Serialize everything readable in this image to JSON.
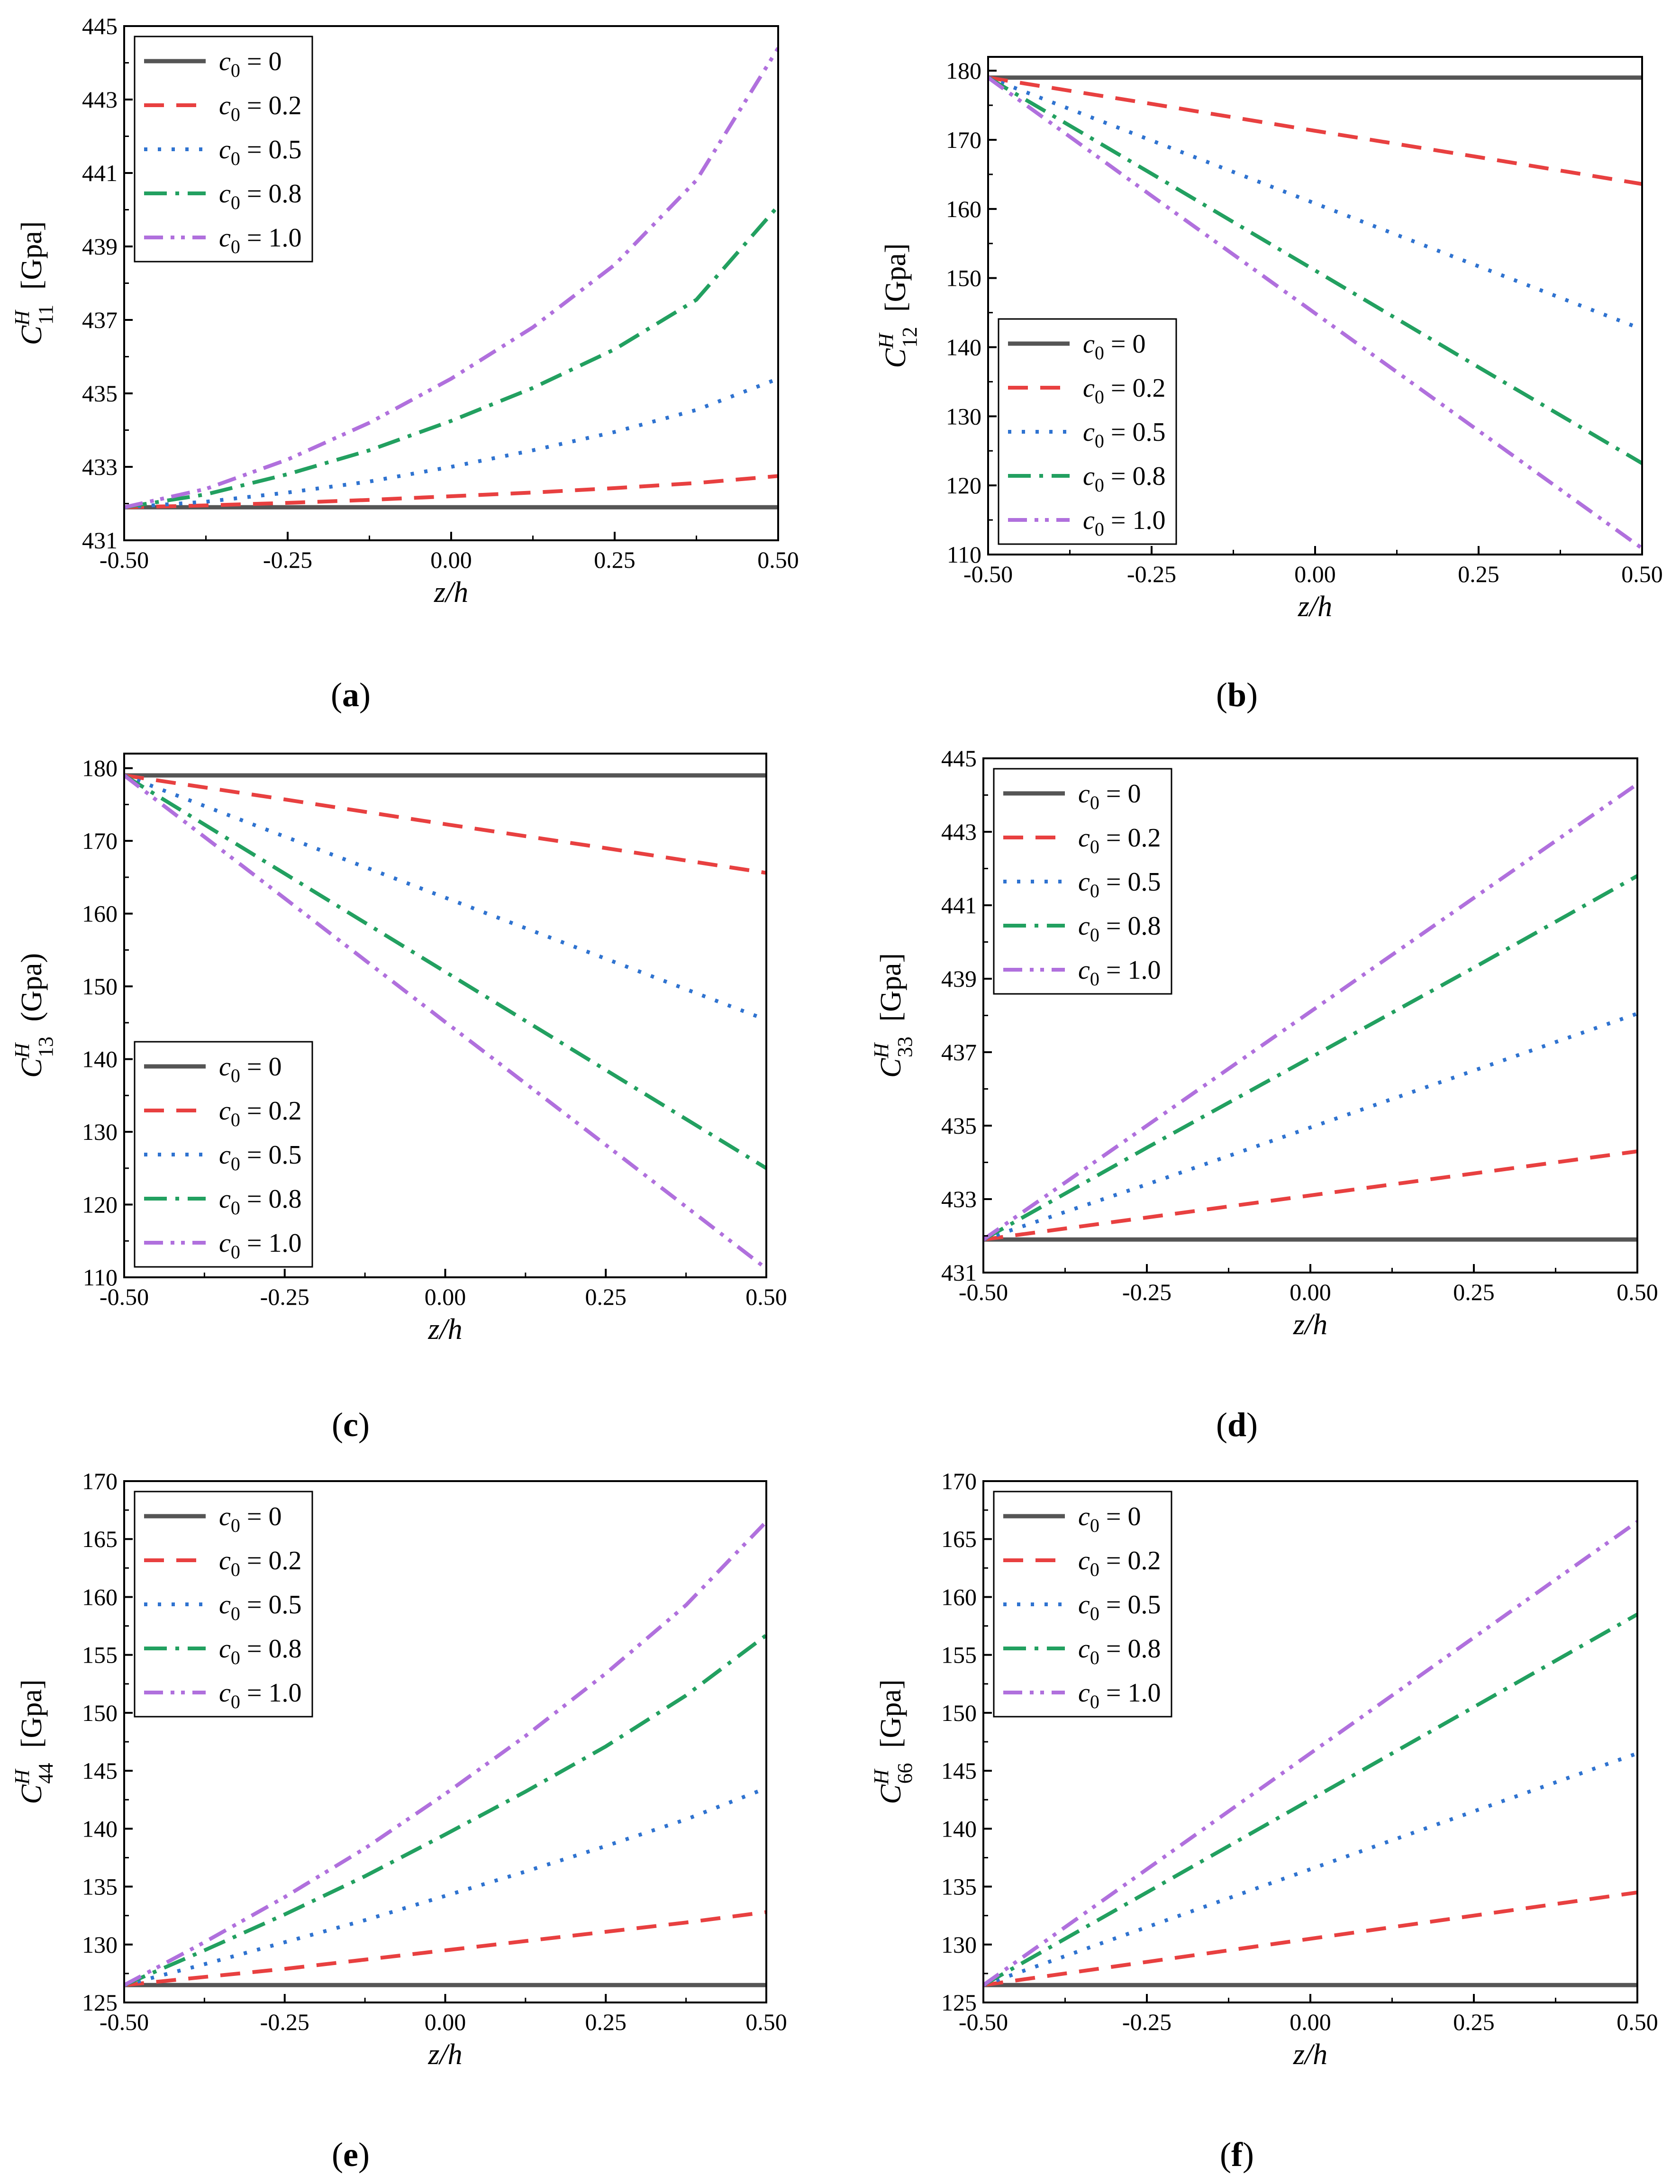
{
  "chart_data": [
    {
      "type": "line",
      "panel_label": "(a)",
      "ylabel": "C",
      "ylabel_sup": "H",
      "ylabel_sub": "11",
      "ylabel_unit": "[Gpa]",
      "xlabel": "z/h",
      "xlim": [
        -0.5,
        0.5
      ],
      "ylim": [
        431,
        445
      ],
      "xticks": [
        "-0.50",
        "-0.25",
        "0.00",
        "0.25",
        "0.50"
      ],
      "yticks": [
        "431",
        "433",
        "435",
        "437",
        "439",
        "441",
        "443",
        "445"
      ],
      "legend_position": "top-left",
      "x": [
        -0.5,
        -0.375,
        -0.25,
        -0.125,
        0.0,
        0.125,
        0.25,
        0.375,
        0.5
      ],
      "series": [
        {
          "name": "c0 = 0",
          "label_main": "c",
          "label_sub": "0",
          "label_rest": " = 0",
          "values": [
            431.9,
            431.9,
            431.9,
            431.9,
            431.9,
            431.9,
            431.9,
            431.9,
            431.9
          ]
        },
        {
          "name": "c0 = 0.2",
          "label_main": "c",
          "label_sub": "0",
          "label_rest": " = 0.2",
          "values": [
            431.9,
            431.95,
            432.02,
            432.1,
            432.2,
            432.3,
            432.42,
            432.56,
            432.75
          ]
        },
        {
          "name": "c0 = 0.5",
          "label_main": "c",
          "label_sub": "0",
          "label_rest": " = 0.5",
          "values": [
            431.9,
            432.05,
            432.3,
            432.6,
            433.0,
            433.45,
            433.95,
            434.55,
            435.4
          ]
        },
        {
          "name": "c0 = 0.8",
          "label_main": "c",
          "label_sub": "0",
          "label_rest": " = 0.8",
          "values": [
            431.9,
            432.25,
            432.8,
            433.45,
            434.25,
            435.15,
            436.2,
            437.55,
            440.1
          ]
        },
        {
          "name": "c0 = 1.0",
          "label_main": "c",
          "label_sub": "0",
          "label_rest": " = 1.0",
          "values": [
            431.9,
            432.4,
            433.2,
            434.2,
            435.4,
            436.8,
            438.5,
            440.8,
            444.4
          ]
        }
      ]
    },
    {
      "type": "line",
      "panel_label": "(b)",
      "ylabel": "C",
      "ylabel_sup": "H",
      "ylabel_sub": "12",
      "ylabel_unit": "[Gpa]",
      "xlabel": "z/h",
      "xlim": [
        -0.5,
        0.5
      ],
      "ylim": [
        110,
        182
      ],
      "xticks": [
        "-0.50",
        "-0.25",
        "0.00",
        "0.25",
        "0.50"
      ],
      "yticks": [
        "110",
        "120",
        "130",
        "140",
        "150",
        "160",
        "170",
        "180"
      ],
      "legend_position": "bottom-left",
      "x": [
        -0.5,
        -0.25,
        0.0,
        0.25,
        0.5
      ],
      "series": [
        {
          "name": "c0 = 0",
          "label_main": "c",
          "label_sub": "0",
          "label_rest": " = 0",
          "values": [
            179.0,
            179.0,
            179.0,
            179.0,
            179.0
          ]
        },
        {
          "name": "c0 = 0.2",
          "label_main": "c",
          "label_sub": "0",
          "label_rest": " = 0.2",
          "values": [
            179.0,
            175.2,
            171.3,
            167.5,
            163.6
          ]
        },
        {
          "name": "c0 = 0.5",
          "label_main": "c",
          "label_sub": "0",
          "label_rest": " = 0.5",
          "values": [
            179.0,
            169.9,
            160.8,
            151.7,
            142.6
          ]
        },
        {
          "name": "c0 = 0.8",
          "label_main": "c",
          "label_sub": "0",
          "label_rest": " = 0.8",
          "values": [
            179.0,
            165.1,
            151.1,
            137.1,
            123.2
          ]
        },
        {
          "name": "c0 = 1.0",
          "label_main": "c",
          "label_sub": "0",
          "label_rest": " = 1.0",
          "values": [
            179.0,
            161.9,
            144.9,
            127.9,
            110.9
          ]
        }
      ]
    },
    {
      "type": "line",
      "panel_label": "(c)",
      "ylabel": "C",
      "ylabel_sup": "H",
      "ylabel_sub": "13",
      "ylabel_unit": "(Gpa)",
      "xlabel": "z/h",
      "xlim": [
        -0.5,
        0.5
      ],
      "ylim": [
        110,
        182
      ],
      "xticks": [
        "-0.50",
        "-0.25",
        "0.00",
        "0.25",
        "0.50"
      ],
      "yticks": [
        "110",
        "120",
        "130",
        "140",
        "150",
        "160",
        "170",
        "180"
      ],
      "legend_position": "bottom-left",
      "x": [
        -0.5,
        -0.25,
        0.0,
        0.25,
        0.5
      ],
      "series": [
        {
          "name": "c0 = 0",
          "label_main": "c",
          "label_sub": "0",
          "label_rest": " = 0",
          "values": [
            179.0,
            179.0,
            179.0,
            179.0,
            179.0
          ]
        },
        {
          "name": "c0 = 0.2",
          "label_main": "c",
          "label_sub": "0",
          "label_rest": " = 0.2",
          "values": [
            179.0,
            175.7,
            172.3,
            169.0,
            165.6
          ]
        },
        {
          "name": "c0 = 0.5",
          "label_main": "c",
          "label_sub": "0",
          "label_rest": " = 0.5",
          "values": [
            179.0,
            170.6,
            162.2,
            153.8,
            145.4
          ]
        },
        {
          "name": "c0 = 0.8",
          "label_main": "c",
          "label_sub": "0",
          "label_rest": " = 0.8",
          "values": [
            179.0,
            165.5,
            152.0,
            138.5,
            125.0
          ]
        },
        {
          "name": "c0 = 1.0",
          "label_main": "c",
          "label_sub": "0",
          "label_rest": " = 1.0",
          "values": [
            179.0,
            162.1,
            145.1,
            128.2,
            111.2
          ]
        }
      ]
    },
    {
      "type": "line",
      "panel_label": "(d)",
      "ylabel": "C",
      "ylabel_sup": "H",
      "ylabel_sub": "33",
      "ylabel_unit": "[Gpa]",
      "xlabel": "z/h",
      "xlim": [
        -0.5,
        0.5
      ],
      "ylim": [
        431,
        445
      ],
      "xticks": [
        "-0.50",
        "-0.25",
        "0.00",
        "0.25",
        "0.50"
      ],
      "yticks": [
        "431",
        "433",
        "435",
        "437",
        "439",
        "441",
        "443",
        "445"
      ],
      "legend_position": "top-left",
      "x": [
        -0.5,
        -0.25,
        0.0,
        0.25,
        0.5
      ],
      "series": [
        {
          "name": "c0 = 0",
          "label_main": "c",
          "label_sub": "0",
          "label_rest": " = 0",
          "values": [
            431.9,
            431.9,
            431.9,
            431.9,
            431.9
          ]
        },
        {
          "name": "c0 = 0.2",
          "label_main": "c",
          "label_sub": "0",
          "label_rest": " = 0.2",
          "values": [
            431.9,
            432.5,
            433.1,
            433.7,
            434.3
          ]
        },
        {
          "name": "c0 = 0.5",
          "label_main": "c",
          "label_sub": "0",
          "label_rest": " = 0.5",
          "values": [
            431.9,
            433.4,
            434.95,
            436.5,
            438.05
          ]
        },
        {
          "name": "c0 = 0.8",
          "label_main": "c",
          "label_sub": "0",
          "label_rest": " = 0.8",
          "values": [
            431.9,
            434.4,
            436.85,
            439.3,
            441.8
          ]
        },
        {
          "name": "c0 = 1.0",
          "label_main": "c",
          "label_sub": "0",
          "label_rest": " = 1.0",
          "values": [
            431.9,
            435.0,
            438.1,
            441.2,
            444.3
          ]
        }
      ]
    },
    {
      "type": "line",
      "panel_label": "(e)",
      "ylabel": "C",
      "ylabel_sup": "H",
      "ylabel_sub": "44",
      "ylabel_unit": "[Gpa]",
      "xlabel": "z/h",
      "xlim": [
        -0.5,
        0.5
      ],
      "ylim": [
        125,
        170
      ],
      "xticks": [
        "-0.50",
        "-0.25",
        "0.00",
        "0.25",
        "0.50"
      ],
      "yticks": [
        "125",
        "130",
        "135",
        "140",
        "145",
        "150",
        "155",
        "160",
        "165",
        "170"
      ],
      "legend_position": "top-left",
      "x": [
        -0.5,
        -0.375,
        -0.25,
        -0.125,
        0.0,
        0.125,
        0.25,
        0.375,
        0.5
      ],
      "series": [
        {
          "name": "c0 = 0",
          "label_main": "c",
          "label_sub": "0",
          "label_rest": " = 0",
          "values": [
            126.5,
            126.5,
            126.5,
            126.5,
            126.5,
            126.5,
            126.5,
            126.5,
            126.5
          ]
        },
        {
          "name": "c0 = 0.2",
          "label_main": "c",
          "label_sub": "0",
          "label_rest": " = 0.2",
          "values": [
            126.5,
            127.2,
            127.9,
            128.7,
            129.5,
            130.3,
            131.1,
            131.9,
            132.8
          ]
        },
        {
          "name": "c0 = 0.5",
          "label_main": "c",
          "label_sub": "0",
          "label_rest": " = 0.5",
          "values": [
            126.5,
            128.3,
            130.2,
            132.1,
            134.2,
            136.3,
            138.5,
            140.8,
            143.5
          ]
        },
        {
          "name": "c0 = 0.8",
          "label_main": "c",
          "label_sub": "0",
          "label_rest": " = 0.8",
          "values": [
            126.5,
            129.5,
            132.6,
            135.9,
            139.5,
            143.2,
            147.1,
            151.5,
            156.7
          ]
        },
        {
          "name": "c0 = 1.0",
          "label_main": "c",
          "label_sub": "0",
          "label_rest": " = 1.0",
          "values": [
            126.5,
            130.2,
            134.1,
            138.3,
            143.0,
            148.0,
            153.4,
            159.3,
            166.5
          ]
        }
      ]
    },
    {
      "type": "line",
      "panel_label": "(f)",
      "ylabel": "C",
      "ylabel_sup": "H",
      "ylabel_sub": "66",
      "ylabel_unit": "[Gpa]",
      "xlabel": "z/h",
      "xlim": [
        -0.5,
        0.5
      ],
      "ylim": [
        125,
        170
      ],
      "xticks": [
        "-0.50",
        "-0.25",
        "0.00",
        "0.25",
        "0.50"
      ],
      "yticks": [
        "125",
        "130",
        "135",
        "140",
        "145",
        "150",
        "155",
        "160",
        "165",
        "170"
      ],
      "legend_position": "top-left",
      "x": [
        -0.5,
        -0.25,
        0.0,
        0.25,
        0.5
      ],
      "series": [
        {
          "name": "c0 = 0",
          "label_main": "c",
          "label_sub": "0",
          "label_rest": " = 0",
          "values": [
            126.5,
            126.5,
            126.5,
            126.5,
            126.5
          ]
        },
        {
          "name": "c0 = 0.2",
          "label_main": "c",
          "label_sub": "0",
          "label_rest": " = 0.2",
          "values": [
            126.5,
            128.5,
            130.5,
            132.5,
            134.5
          ]
        },
        {
          "name": "c0 = 0.5",
          "label_main": "c",
          "label_sub": "0",
          "label_rest": " = 0.5",
          "values": [
            126.5,
            131.5,
            136.5,
            141.5,
            146.5
          ]
        },
        {
          "name": "c0 = 0.8",
          "label_main": "c",
          "label_sub": "0",
          "label_rest": " = 0.8",
          "values": [
            126.5,
            134.5,
            142.5,
            150.5,
            158.5
          ]
        },
        {
          "name": "c0 = 1.0",
          "label_main": "c",
          "label_sub": "0",
          "label_rest": " = 1.0",
          "values": [
            126.5,
            136.5,
            146.5,
            156.5,
            166.5
          ]
        }
      ]
    }
  ],
  "series_colors": [
    "#555555",
    "#e84040",
    "#2f73d0",
    "#22a060",
    "#b070dd"
  ]
}
